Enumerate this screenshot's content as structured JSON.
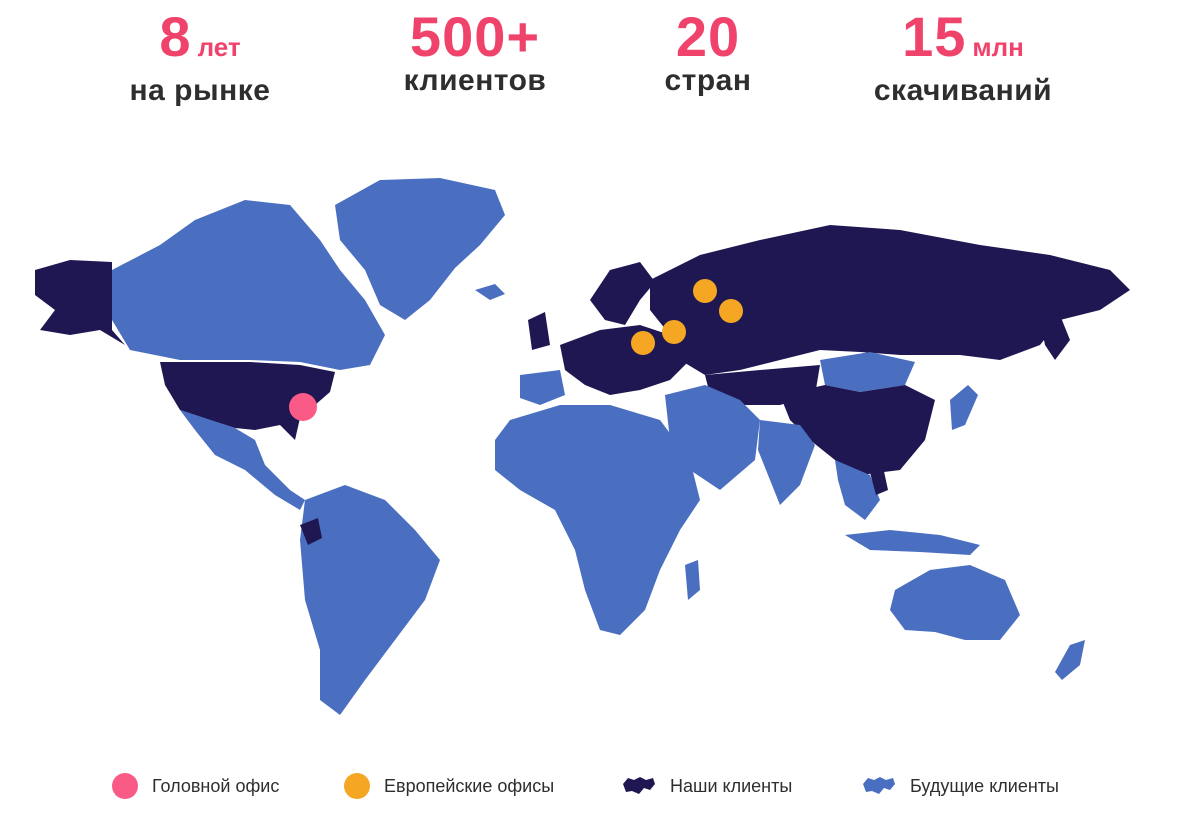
{
  "stats": [
    {
      "value": "8",
      "unit": "лет",
      "label": "на рынке"
    },
    {
      "value": "500+",
      "unit": "",
      "label": "клиентов"
    },
    {
      "value": "20",
      "unit": "",
      "label": "стран"
    },
    {
      "value": "15",
      "unit": "млн",
      "label": "скачиваний"
    }
  ],
  "legend": {
    "head_office": "Головной офис",
    "european_offices": "Европейские офисы",
    "our_clients": "Наши клиенты",
    "future_clients": "Будущие клиенты"
  },
  "colors": {
    "accent": "#f0436b",
    "head_office_marker": "#f95b86",
    "office_marker": "#f5a623",
    "client_region": "#1f1752",
    "future_region": "#4a6fc0"
  },
  "icons": {
    "head_office": "pink-circle-icon",
    "european_offices": "orange-circle-icon",
    "our_clients": "dark-landmass-icon",
    "future_clients": "blue-landmass-icon"
  }
}
